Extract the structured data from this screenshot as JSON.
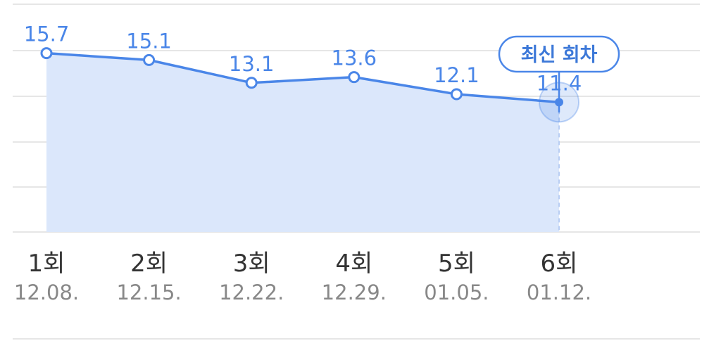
{
  "chart_data": {
    "type": "area",
    "categories": [
      "1회",
      "2회",
      "3회",
      "4회",
      "5회",
      "6회"
    ],
    "dates": [
      "12.08.",
      "12.15.",
      "12.22.",
      "12.29.",
      "01.05.",
      "01.12."
    ],
    "values": [
      15.7,
      15.1,
      13.1,
      13.6,
      12.1,
      11.4
    ],
    "value_labels": [
      "15.7",
      "15.1",
      "13.1",
      "13.6",
      "12.1",
      "11.4"
    ],
    "ylim": [
      0,
      20
    ],
    "grid": true,
    "highlight": {
      "index": 5,
      "label": "최신 회차"
    },
    "colors": {
      "line": "#4a86e8",
      "fill": "#dbe7fb",
      "grid": "#e6e6e6",
      "badge_bg": "#ffffff"
    }
  }
}
